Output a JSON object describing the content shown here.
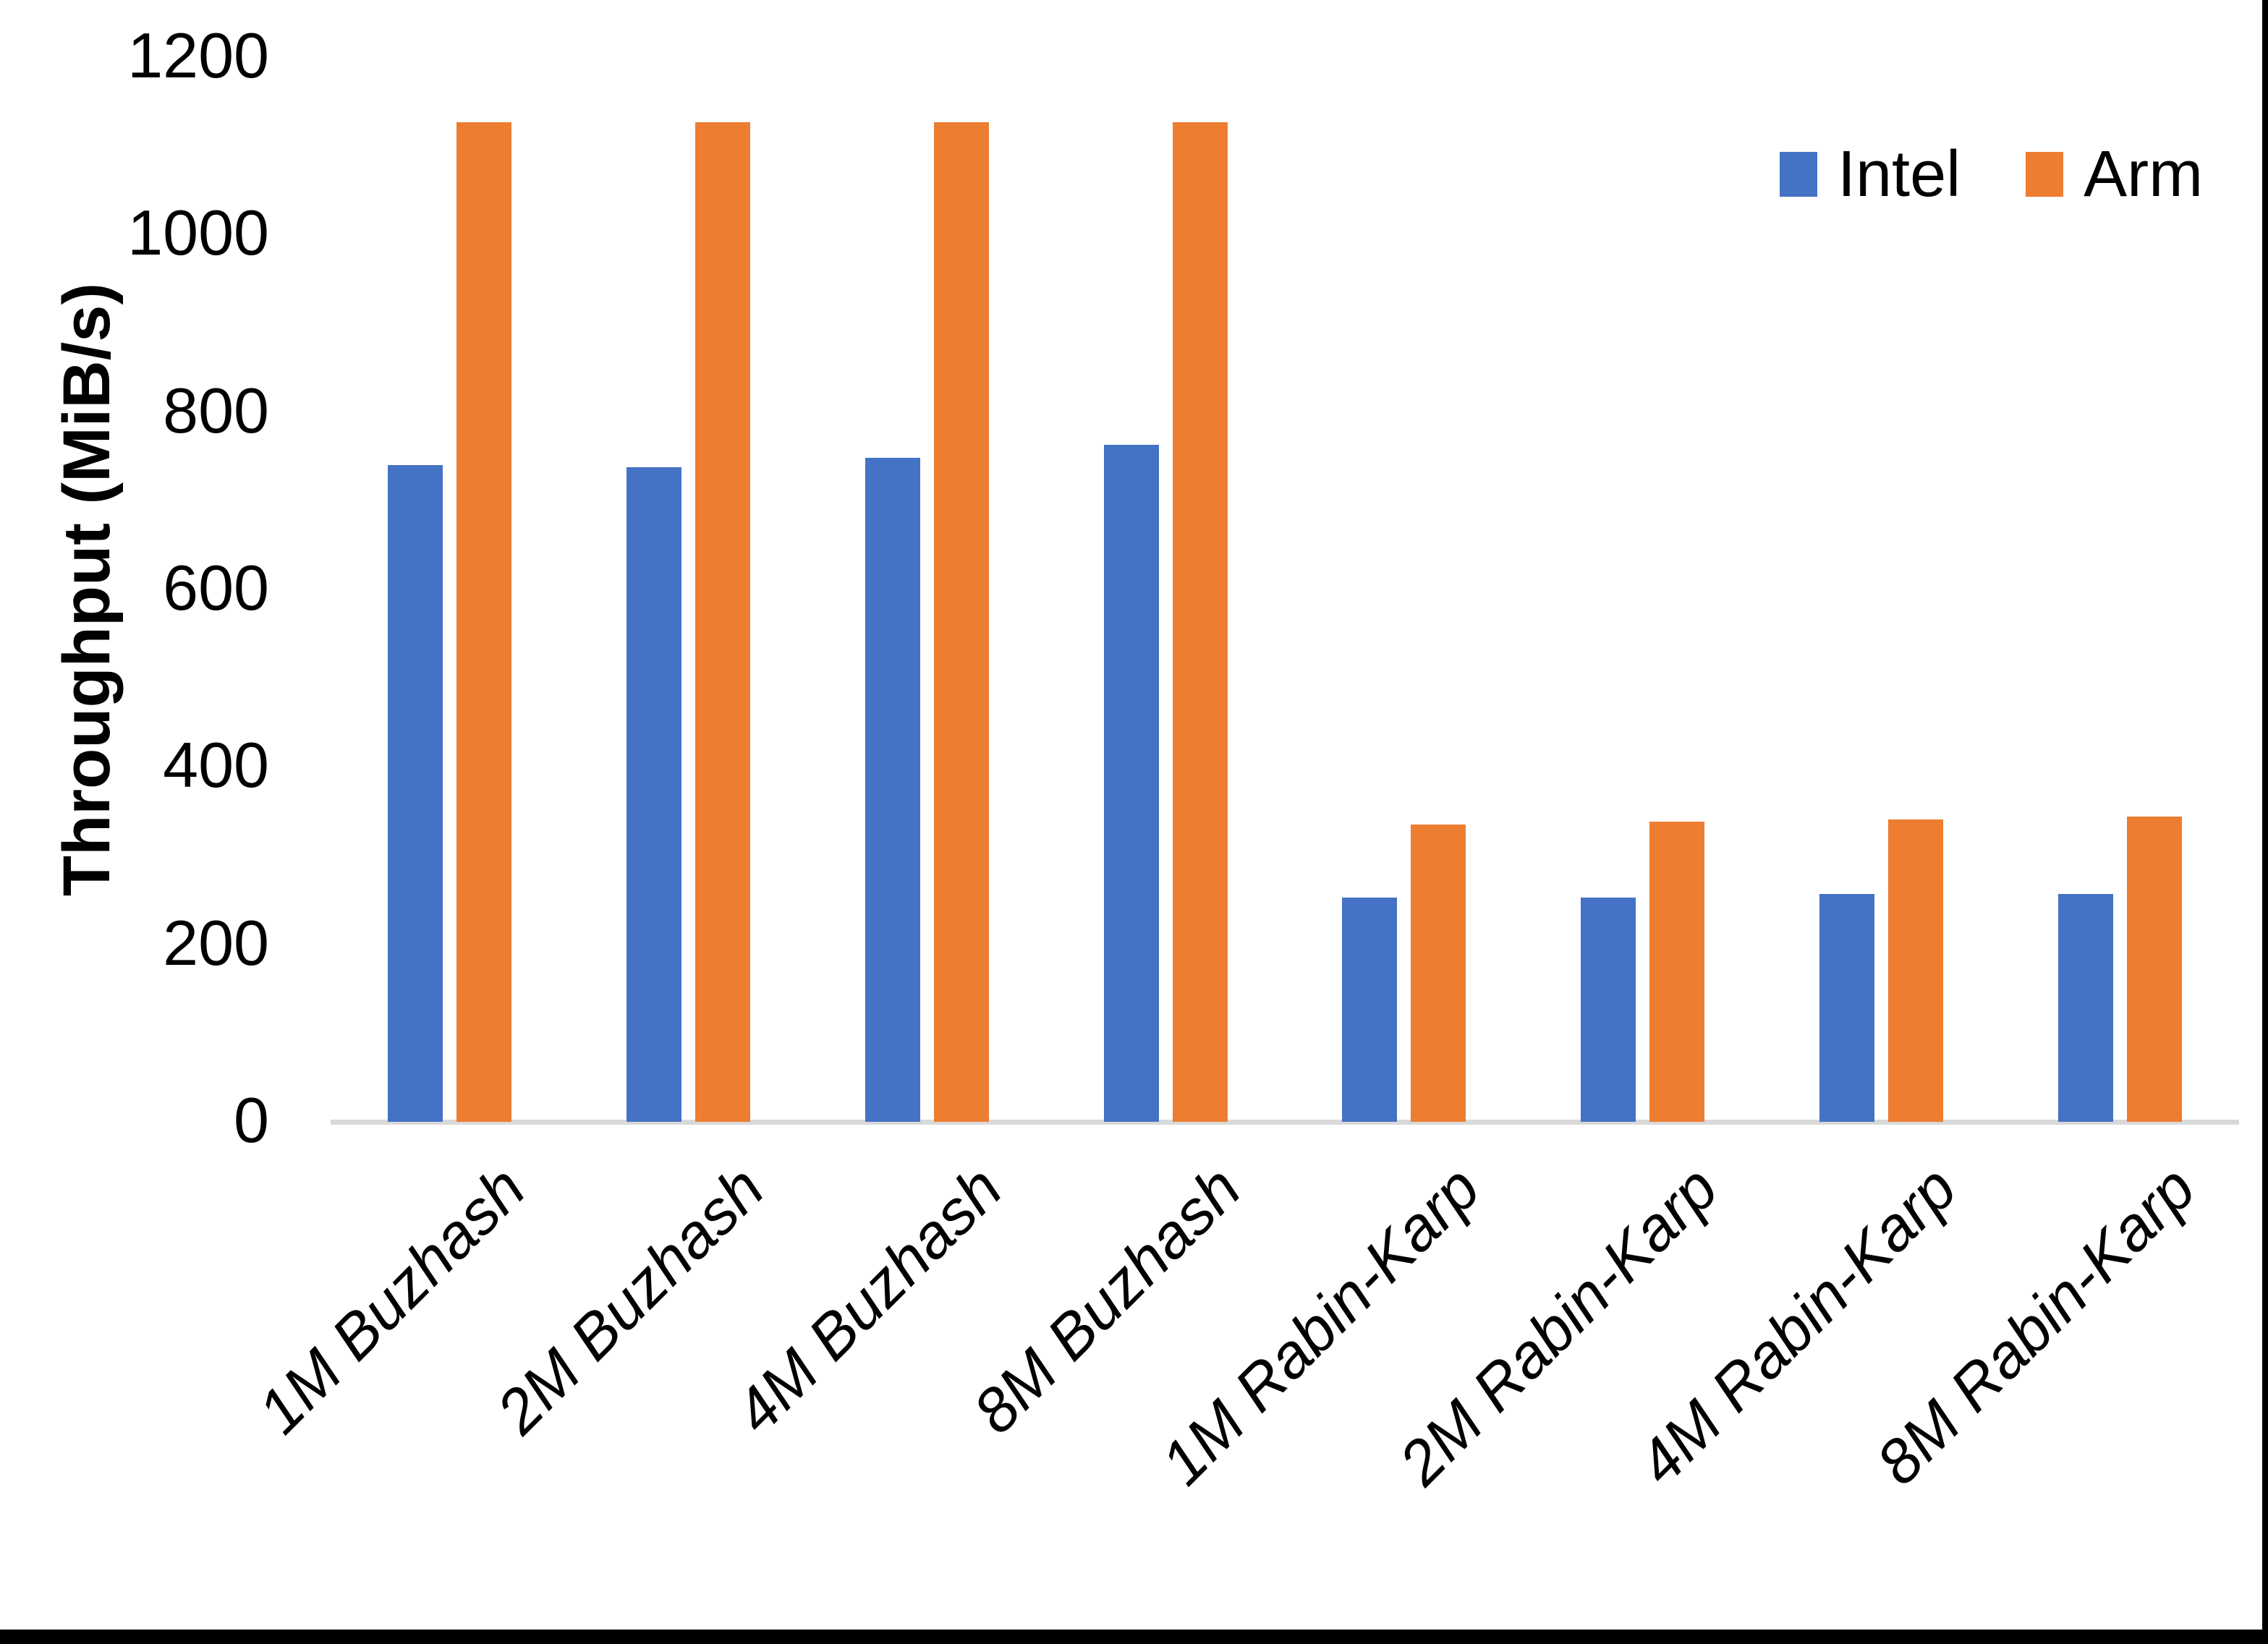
{
  "chart_data": {
    "type": "bar",
    "title": "",
    "xlabel": "",
    "ylabel": "Throughput (MiB/s)",
    "categories": [
      "1M Buzhash",
      "2M Buzhash",
      "4M Buzhash",
      "8M Buzhash",
      "1M Rabin-Karp",
      "2M Rabin-Karp",
      "4M Rabin-Karp",
      "8M Rabin-Karp"
    ],
    "series": [
      {
        "name": "Intel",
        "color": "#4472C4",
        "values": [
          740,
          738,
          748,
          763,
          253,
          253,
          257,
          257
        ]
      },
      {
        "name": "Arm",
        "color": "#ED7D31",
        "values": [
          1127,
          1127,
          1127,
          1127,
          335,
          338,
          341,
          344
        ]
      }
    ],
    "ylim": [
      0,
      1200
    ],
    "yticks": [
      0,
      200,
      400,
      600,
      800,
      1000,
      1200
    ],
    "grid": false,
    "legend_position": "top-right",
    "axis_line_color": "#D9D9D9",
    "x_label_style": "italic, rotated 45deg"
  }
}
